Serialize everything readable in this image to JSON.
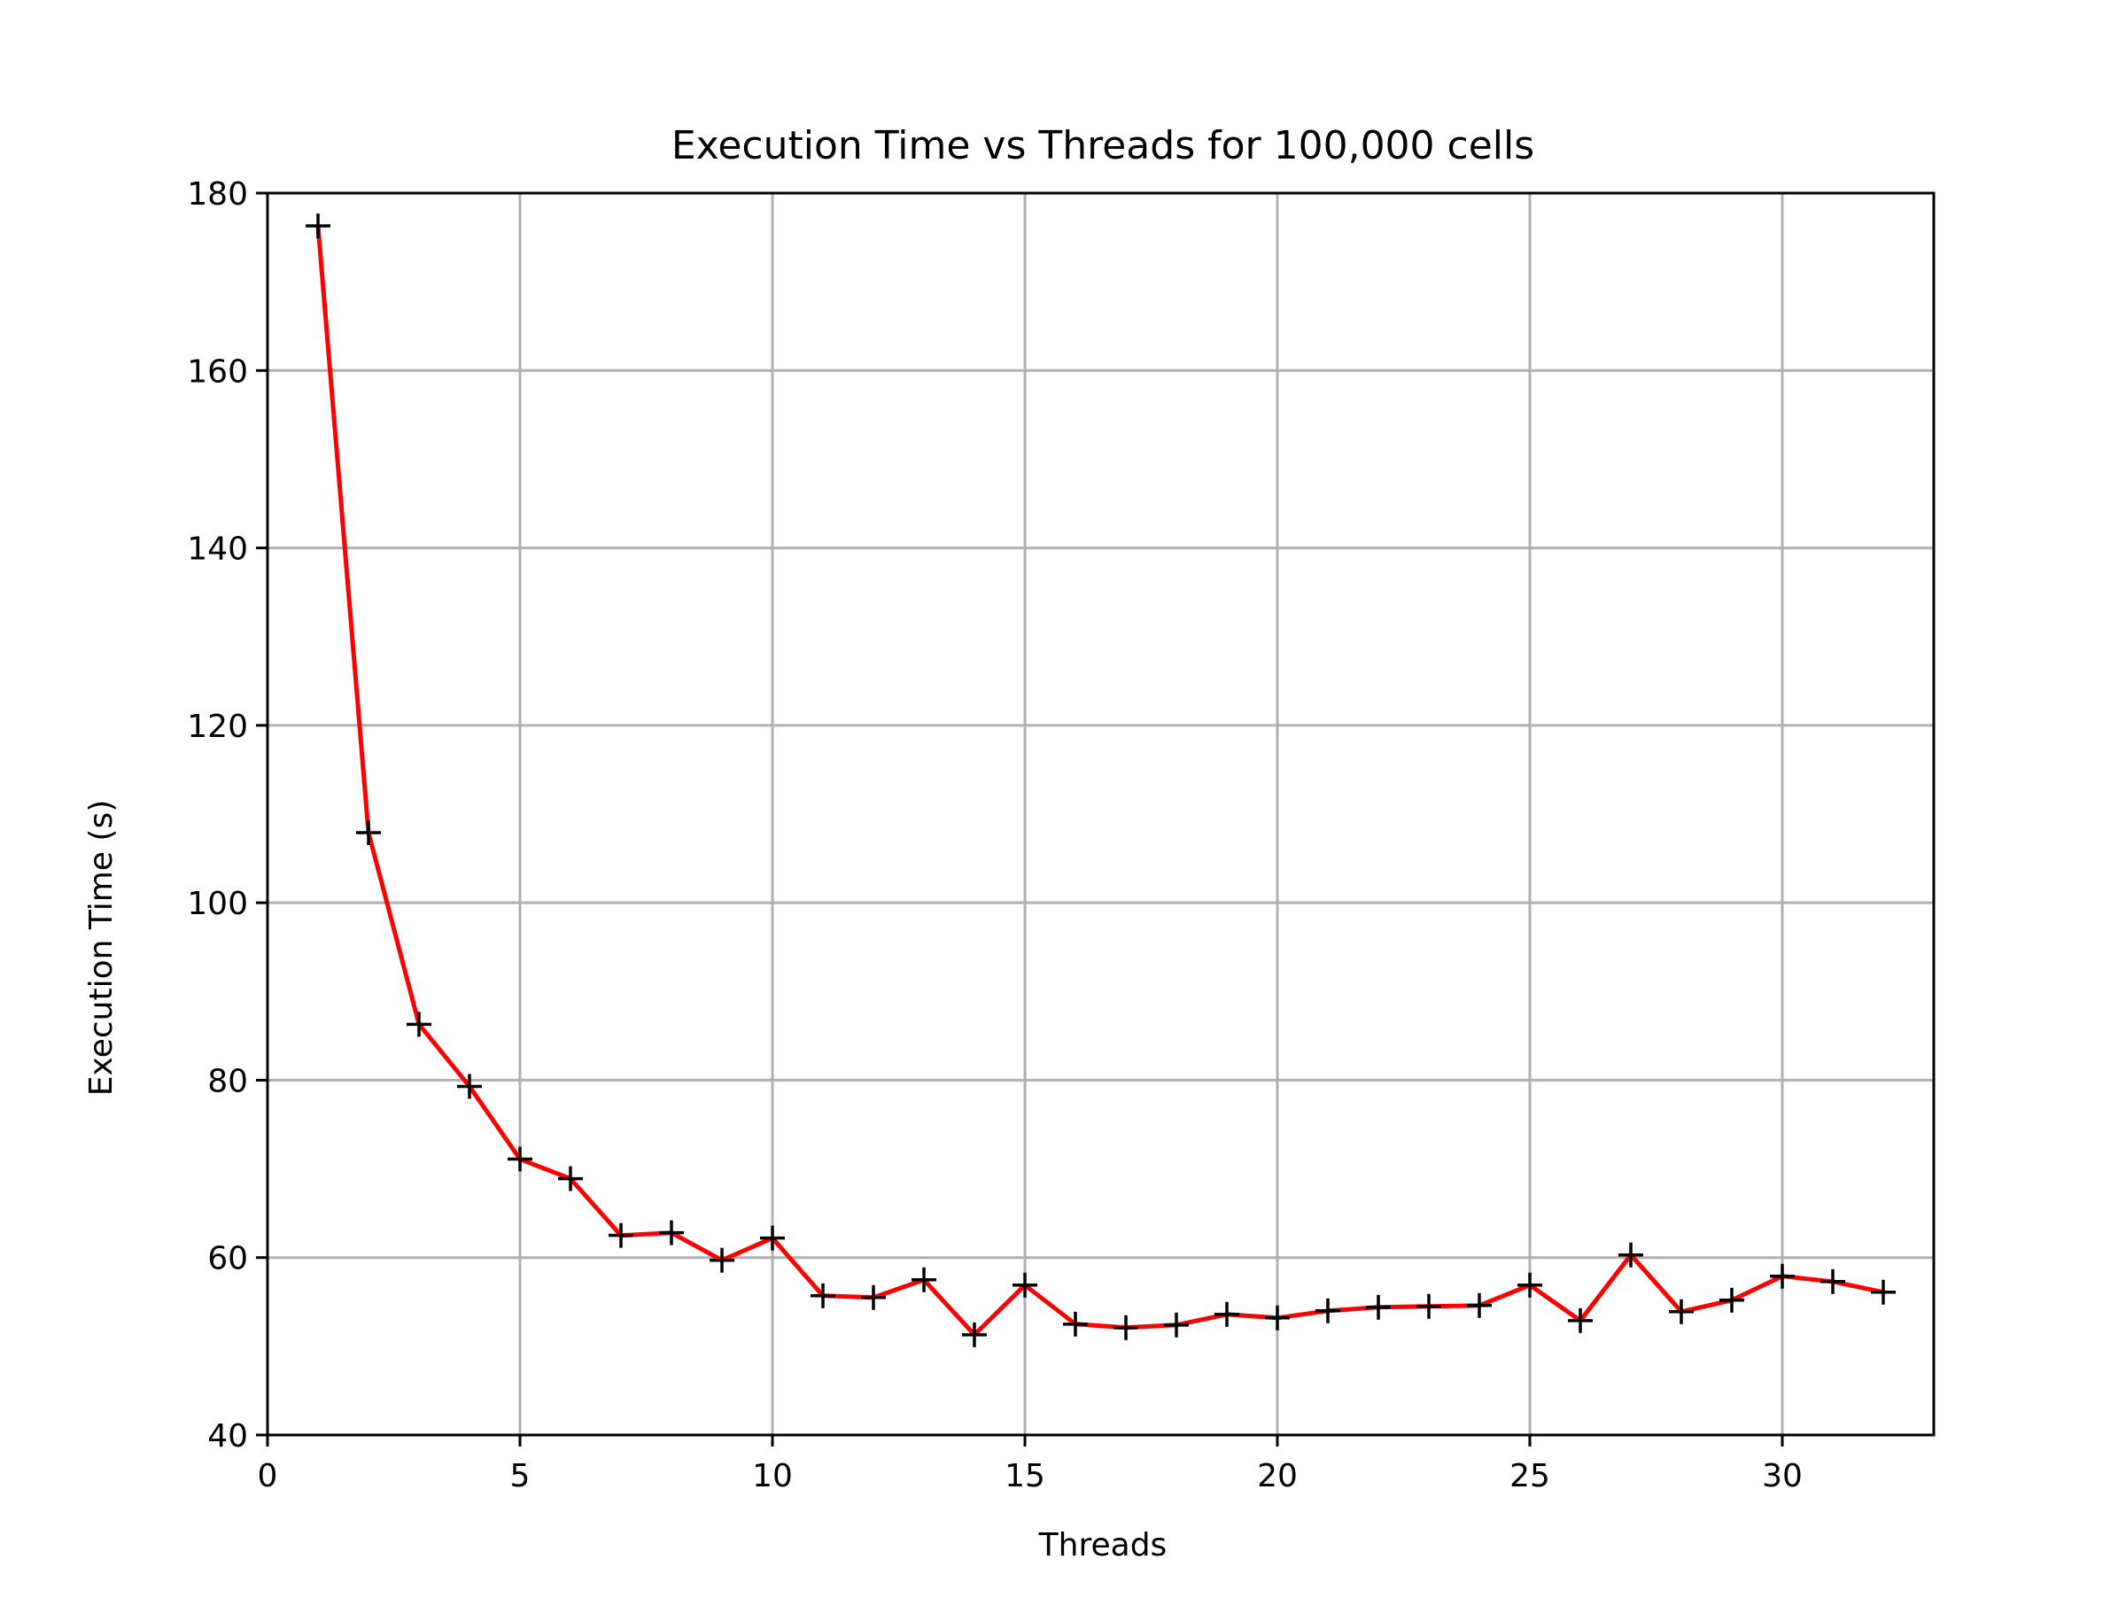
{
  "chart_data": {
    "type": "line",
    "title": "Execution Time vs Threads for 100,000 cells",
    "xlabel": "Threads",
    "ylabel": "Execution Time (s)",
    "xlim": [
      0,
      33
    ],
    "ylim": [
      40,
      180
    ],
    "xticks": [
      0,
      5,
      10,
      15,
      20,
      25,
      30
    ],
    "yticks": [
      40,
      60,
      80,
      100,
      120,
      140,
      160,
      180
    ],
    "grid": true,
    "legend": "none",
    "series": [
      {
        "line_color": "#ff0000",
        "marker": "+",
        "marker_color": "#000000",
        "x": [
          1,
          2,
          3,
          4,
          5,
          6,
          7,
          8,
          9,
          10,
          11,
          12,
          13,
          14,
          15,
          16,
          17,
          18,
          19,
          20,
          21,
          22,
          23,
          24,
          25,
          26,
          27,
          28,
          29,
          30,
          31,
          32
        ],
        "y": [
          176.3,
          107.9,
          86.3,
          79.3,
          71.1,
          68.9,
          62.5,
          62.8,
          59.7,
          62.2,
          55.7,
          55.5,
          57.5,
          51.3,
          56.9,
          52.5,
          52.1,
          52.4,
          53.6,
          53.2,
          54.0,
          54.4,
          54.5,
          54.6,
          56.9,
          52.9,
          60.3,
          53.9,
          55.2,
          57.9,
          57.3,
          56.1
        ]
      }
    ]
  }
}
